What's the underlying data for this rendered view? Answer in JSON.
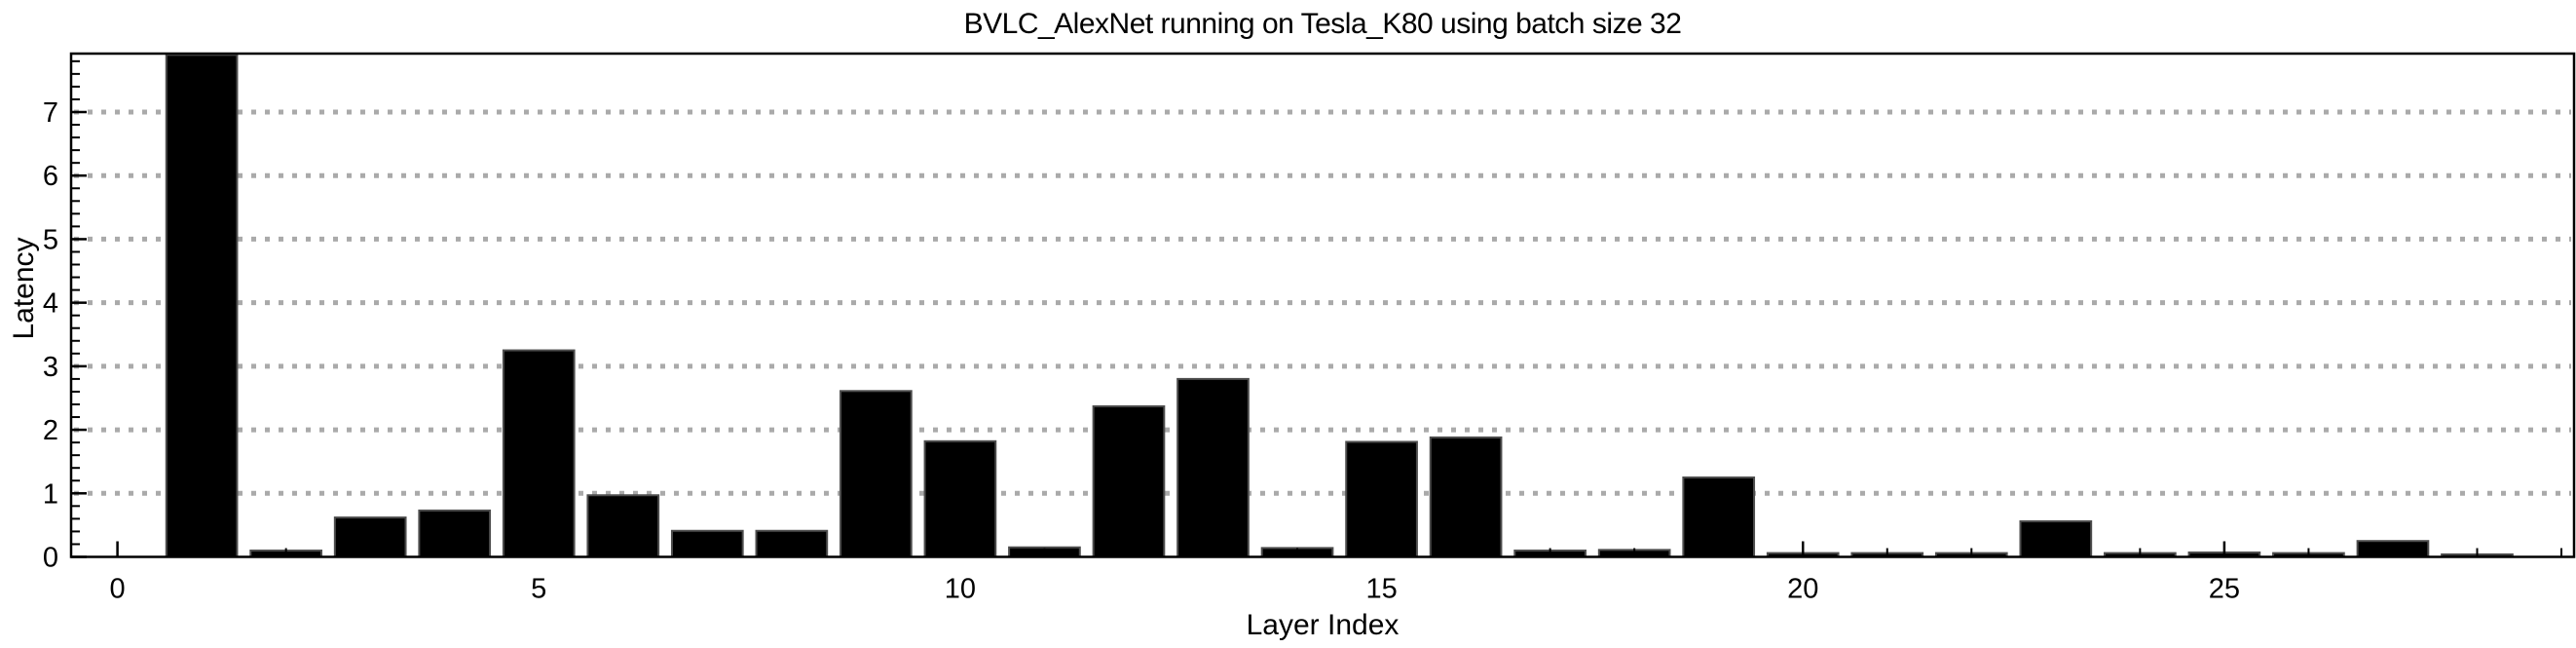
{
  "title": "BVLC_AlexNet running on Tesla_K80 using batch size 32",
  "chart_data": {
    "type": "bar",
    "title": "BVLC_AlexNet running on Tesla_K80 using batch size 32",
    "xlabel": "Layer Index",
    "ylabel": "Latency",
    "x": [
      1,
      2,
      3,
      4,
      5,
      6,
      7,
      8,
      9,
      10,
      11,
      12,
      13,
      14,
      15,
      16,
      17,
      18,
      19,
      20,
      21,
      22,
      23,
      24,
      25,
      26,
      27,
      28
    ],
    "values": [
      7.9,
      0.1,
      0.62,
      0.73,
      3.25,
      0.97,
      0.41,
      0.41,
      2.61,
      1.82,
      0.15,
      2.37,
      2.8,
      0.14,
      1.81,
      1.88,
      0.1,
      0.11,
      1.25,
      0.06,
      0.06,
      0.06,
      0.56,
      0.06,
      0.07,
      0.06,
      0.25,
      0.04
    ],
    "xlim": [
      -0.55,
      29.15
    ],
    "ylim": [
      0,
      7.92
    ],
    "xticks_major": [
      0,
      5,
      10,
      15,
      20,
      25
    ],
    "xtick_minor_every": 1,
    "yticks_major": [
      0,
      1,
      2,
      3,
      4,
      5,
      6,
      7
    ],
    "ytick_minor_every": 0.2,
    "grid": "horizontal dotted gridlines at integer y values",
    "legend_position": "none",
    "bar_width_fraction": 0.84,
    "colors": {
      "bar_fill": "#000000",
      "bar_edge": "#4d4d4d",
      "grid": "#aaaaaa",
      "axis": "#000000",
      "background": "#ffffff"
    }
  }
}
